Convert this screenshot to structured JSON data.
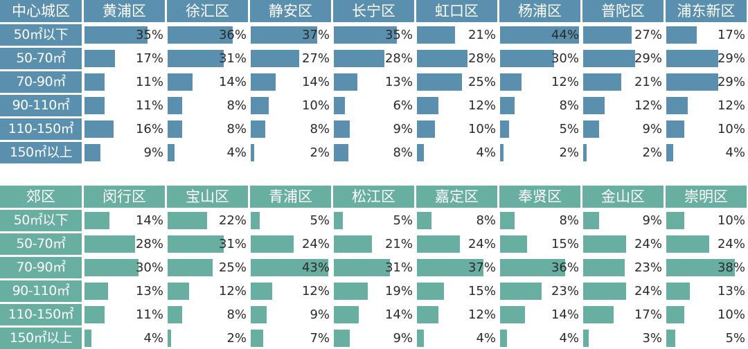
{
  "chart_data": [
    {
      "type": "table",
      "corner_label": "中心城区",
      "columns": [
        "黄浦区",
        "徐汇区",
        "静安区",
        "长宁区",
        "虹口区",
        "杨浦区",
        "普陀区",
        "浦东新区"
      ],
      "rows": [
        "50㎡以下",
        "50-70㎡",
        "70-90㎡",
        "90-110㎡",
        "110-150㎡",
        "150㎡以上"
      ],
      "values": [
        [
          35,
          36,
          37,
          35,
          21,
          44,
          27,
          17
        ],
        [
          17,
          31,
          27,
          28,
          28,
          30,
          29,
          29
        ],
        [
          11,
          14,
          14,
          13,
          25,
          12,
          21,
          29
        ],
        [
          11,
          8,
          10,
          6,
          12,
          8,
          12,
          12
        ],
        [
          16,
          8,
          8,
          9,
          10,
          5,
          9,
          10
        ],
        [
          9,
          4,
          2,
          8,
          4,
          2,
          2,
          4
        ]
      ],
      "value_suffix": "%",
      "color": "#5a90ad"
    },
    {
      "type": "table",
      "corner_label": "郊区",
      "columns": [
        "闵行区",
        "宝山区",
        "青浦区",
        "松江区",
        "嘉定区",
        "奉贤区",
        "金山区",
        "崇明区"
      ],
      "rows": [
        "50㎡以下",
        "50-70㎡",
        "70-90㎡",
        "90-110㎡",
        "110-150㎡",
        "150㎡以上"
      ],
      "values": [
        [
          14,
          22,
          5,
          5,
          8,
          8,
          9,
          10
        ],
        [
          28,
          31,
          24,
          21,
          24,
          15,
          24,
          24
        ],
        [
          30,
          25,
          43,
          31,
          37,
          36,
          23,
          38
        ],
        [
          13,
          12,
          12,
          19,
          15,
          23,
          24,
          13
        ],
        [
          11,
          8,
          9,
          14,
          12,
          14,
          17,
          10
        ],
        [
          4,
          2,
          7,
          9,
          4,
          4,
          3,
          5
        ]
      ],
      "value_suffix": "%",
      "color": "#68aea1"
    }
  ]
}
